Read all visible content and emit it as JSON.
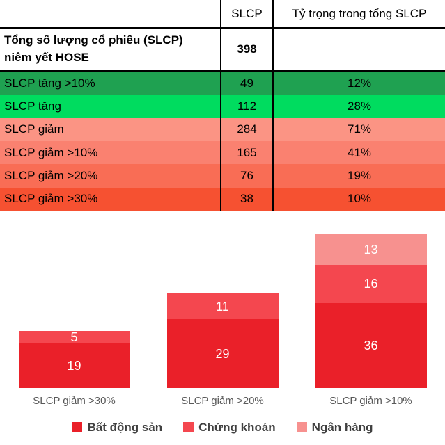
{
  "chart_data": [
    {
      "type": "table",
      "columns": [
        "",
        "SLCP",
        "Tỷ trọng trong tổng SLCP"
      ],
      "rows": [
        {
          "label": "Tổng số lượng cổ phiếu (SLCP)\nniêm yết HOSE",
          "slcp": "398",
          "ty_trong": "",
          "bg": "#ffffff"
        },
        {
          "label": "SLCP tăng >10%",
          "slcp": "49",
          "ty_trong": "12%",
          "bg": "#1fa151"
        },
        {
          "label": "SLCP tăng",
          "slcp": "112",
          "ty_trong": "28%",
          "bg": "#00dc5f"
        },
        {
          "label": "SLCP giảm",
          "slcp": "284",
          "ty_trong": "71%",
          "bg": "#fb9484"
        },
        {
          "label": "SLCP giảm >10%",
          "slcp": "165",
          "ty_trong": "41%",
          "bg": "#fa8170"
        },
        {
          "label": "SLCP giảm >20%",
          "slcp": "76",
          "ty_trong": "19%",
          "bg": "#f96d55"
        },
        {
          "label": "SLCP giảm >30%",
          "slcp": "38",
          "ty_trong": "10%",
          "bg": "#f65131"
        }
      ]
    },
    {
      "type": "bar",
      "stacked": true,
      "categories": [
        "SLCP giảm >30%",
        "SLCP giảm >20%",
        "SLCP giảm >10%"
      ],
      "series": [
        {
          "name": "Bất động sản",
          "color": "#ea2029",
          "values": [
            19,
            29,
            36
          ]
        },
        {
          "name": "Chứng khoán",
          "color": "#f4474f",
          "values": [
            5,
            11,
            16
          ]
        },
        {
          "name": "Ngân hàng",
          "color": "#f7918f",
          "values": [
            0,
            0,
            13
          ]
        }
      ],
      "totals": [
        24,
        40,
        65
      ],
      "legend_position": "bottom",
      "grid": false,
      "value_labels": "inside-white"
    }
  ]
}
